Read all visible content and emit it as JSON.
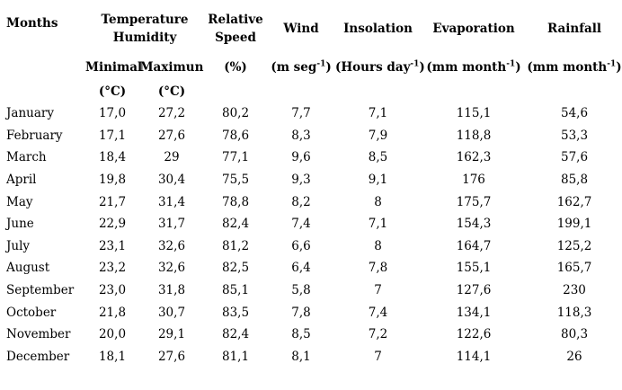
{
  "page": {
    "background_color": "#ffffff",
    "text_color": "#000000"
  },
  "table": {
    "months_header": "Months",
    "groups": {
      "temperature": {
        "line1": "Temperature",
        "line2": "Humidity"
      },
      "relative": {
        "line1": "Relative",
        "line2": "Speed"
      }
    },
    "headers": {
      "wind": "Wind",
      "insolation": "Insolation",
      "evaporation": "Evaporation",
      "rainfall": "Rainfall"
    },
    "subheaders": {
      "minimal": "Minimal",
      "maximun": "Maximun",
      "percent": "(%)"
    },
    "units": {
      "wind": {
        "pre": "(m seg",
        "sup": "-1",
        "post": ")"
      },
      "insolation": {
        "pre": "(Hours day",
        "sup": "-1",
        "post": ")"
      },
      "evaporation": {
        "pre": "(mm month",
        "sup": "-1",
        "post": ")"
      },
      "rainfall": {
        "pre": "(mm month",
        "sup": "-1",
        "post": ")"
      },
      "celsius_minimal": "(°C)",
      "celsius_maximun": "(°C)"
    },
    "rows": [
      {
        "month": "January",
        "values": [
          "17,0",
          "27,2",
          "80,2",
          "7,7",
          "7,1",
          "115,1",
          "54,6"
        ]
      },
      {
        "month": "February",
        "values": [
          "17,1",
          "27,6",
          "78,6",
          "8,3",
          "7,9",
          "118,8",
          "53,3"
        ]
      },
      {
        "month": "March",
        "values": [
          "18,4",
          "29",
          "77,1",
          "9,6",
          "8,5",
          "162,3",
          "57,6"
        ]
      },
      {
        "month": "April",
        "values": [
          "19,8",
          "30,4",
          "75,5",
          "9,3",
          "9,1",
          "176",
          "85,8"
        ]
      },
      {
        "month": "May",
        "values": [
          "21,7",
          "31,4",
          "78,8",
          "8,2",
          "8",
          "175,7",
          "162,7"
        ]
      },
      {
        "month": "June",
        "values": [
          "22,9",
          "31,7",
          "82,4",
          "7,4",
          "7,1",
          "154,3",
          "199,1"
        ]
      },
      {
        "month": "July",
        "values": [
          "23,1",
          "32,6",
          "81,2",
          "6,6",
          "8",
          "164,7",
          "125,2"
        ]
      },
      {
        "month": "August",
        "values": [
          "23,2",
          "32,6",
          "82,5",
          "6,4",
          "7,8",
          "155,1",
          "165,7"
        ]
      },
      {
        "month": "September",
        "values": [
          "23,0",
          "31,8",
          "85,1",
          "5,8",
          "7",
          "127,6",
          "230"
        ]
      },
      {
        "month": "October",
        "values": [
          "21,8",
          "30,7",
          "83,5",
          "7,8",
          "7,4",
          "134,1",
          "118,3"
        ]
      },
      {
        "month": "November",
        "values": [
          "20,0",
          "29,1",
          "82,4",
          "8,5",
          "7,2",
          "122,6",
          "80,3"
        ]
      },
      {
        "month": "December",
        "values": [
          "18,1",
          "27,6",
          "81,1",
          "8,1",
          "7",
          "114,1",
          "26"
        ]
      }
    ]
  }
}
